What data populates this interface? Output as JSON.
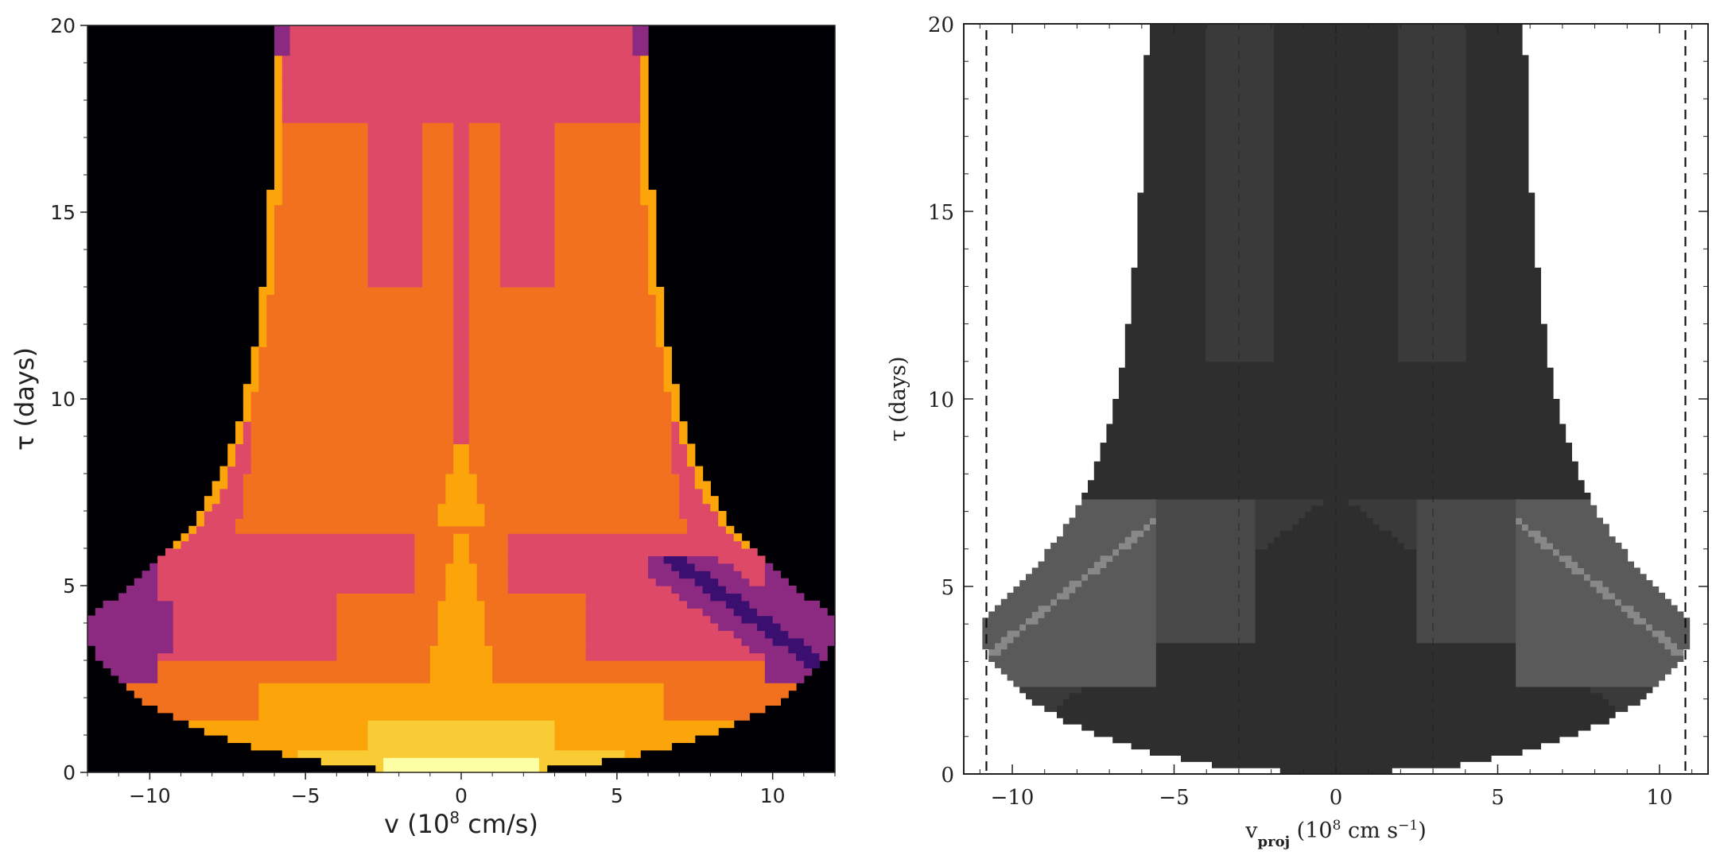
{
  "chart_data": [
    {
      "type": "heatmap",
      "title": "",
      "xlabel": "v (10",
      "xlabel_sup": "8",
      "xlabel_unit": " cm/s)",
      "ylabel": "τ (days)",
      "xlim": [
        -12,
        12
      ],
      "ylim": [
        0,
        20
      ],
      "xticks": [
        -10,
        -5,
        0,
        5,
        10
      ],
      "xtick_labels": [
        "−10",
        "−5",
        "0",
        "5",
        "10"
      ],
      "yticks": [
        0,
        5,
        10,
        15,
        20
      ],
      "ytick_labels": [
        "0",
        "5",
        "10",
        "15",
        "20"
      ],
      "colormap": [
        "#000004",
        "#3b0f70",
        "#8c2981",
        "#de4968",
        "#f1711f",
        "#fca50a",
        "#f9cb35",
        "#fcffa4"
      ],
      "background_color": "#000004",
      "shell_velocity": 12,
      "sphere_tau_max": 6.5
    },
    {
      "type": "heatmap",
      "title": "",
      "xlabel": "v",
      "xlabel_sub": "proj",
      "xlabel_unit_pre": " (10",
      "xlabel_sup": "8",
      "xlabel_unit": " cm s",
      "xlabel_sup2": "−1",
      "xlabel_close": ")",
      "ylabel": "τ (days)",
      "xlim": [
        -11.5,
        11.5
      ],
      "ylim": [
        0,
        20
      ],
      "xticks": [
        -10,
        -5,
        0,
        5,
        10
      ],
      "xtick_labels": [
        "−10",
        "−5",
        "0",
        "5",
        "10"
      ],
      "yticks": [
        0,
        5,
        10,
        15,
        20
      ],
      "ytick_labels": [
        "0",
        "5",
        "10",
        "15",
        "20"
      ],
      "dashed_lines_x": [
        -10.8,
        10.8
      ],
      "faint_lines_x": [
        -3,
        0,
        3
      ],
      "shell_velocity": 11,
      "sphere_tau_max": 7.4,
      "colors": [
        "#2e2e2e",
        "#3a3a3a",
        "#484848",
        "#5a5a5a",
        "#888888"
      ]
    }
  ]
}
